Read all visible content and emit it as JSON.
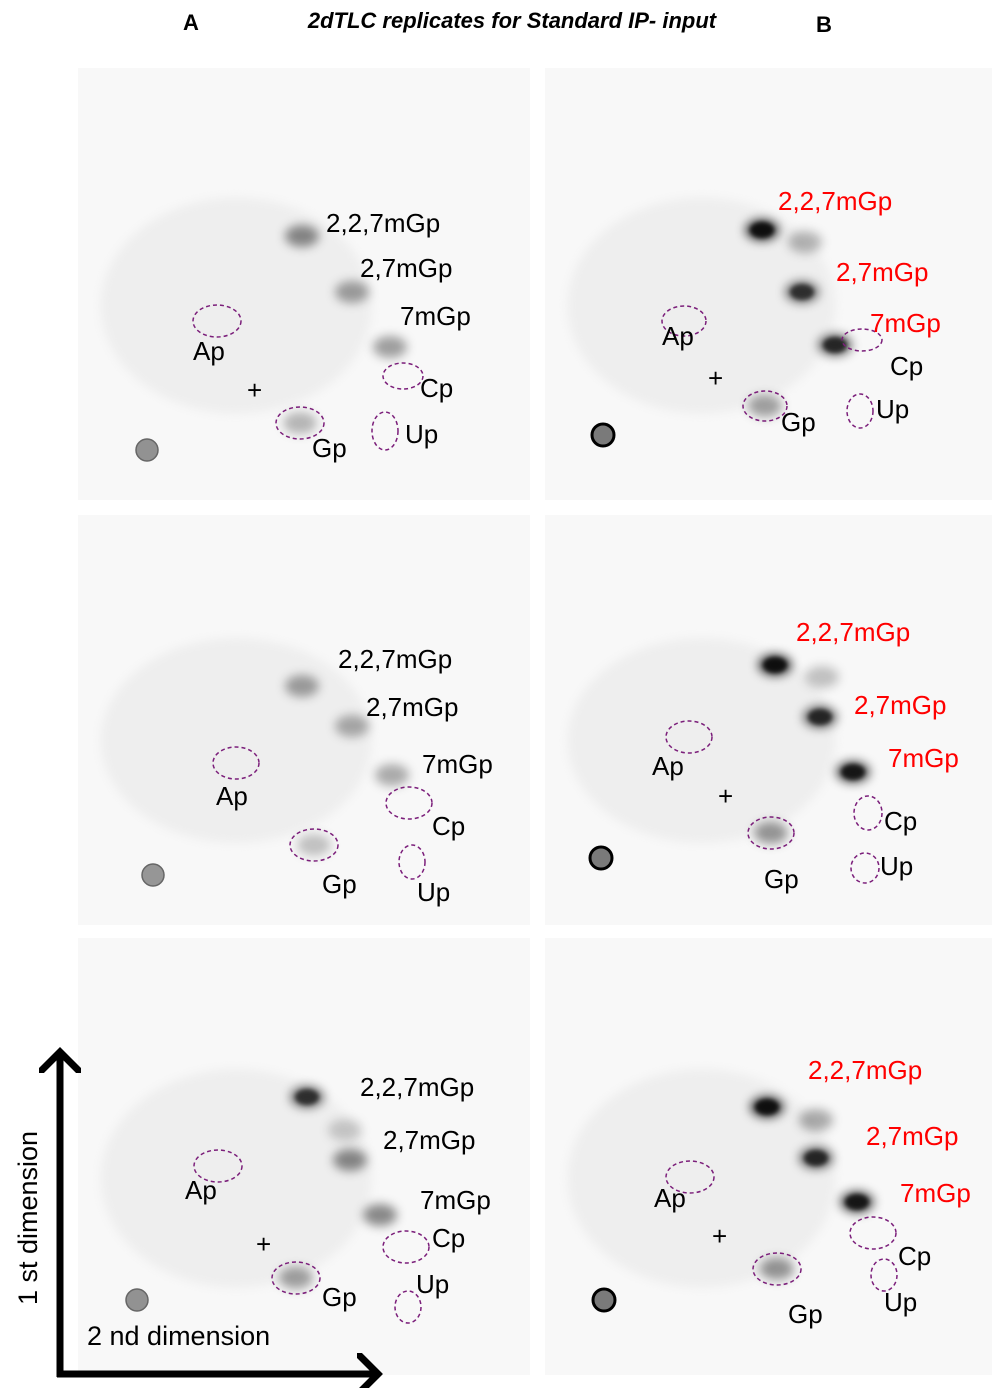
{
  "header": {
    "column_a": "A",
    "title": "2dTLC replicates for  Standard IP- input",
    "column_b": "B"
  },
  "axes": {
    "first": "1 st dimension",
    "second": "2 nd dimension"
  },
  "panels": [
    {
      "methyl_color": "#000000",
      "methyl_labels": [
        "2,2,7mGp",
        "2,7mGp",
        "7mGp"
      ],
      "nucleotide_labels": [
        "Ap",
        "+",
        "Cp",
        "Gp",
        "Up"
      ]
    },
    {
      "methyl_color": "#ff0000",
      "methyl_labels": [
        "2,2,7mGp",
        "2,7mGp",
        "7mGp"
      ],
      "nucleotide_labels": [
        "Ap",
        "+",
        "Cp",
        "Gp",
        "Up"
      ]
    },
    {
      "methyl_color": "#000000",
      "methyl_labels": [
        "2,2,7mGp",
        "2,7mGp",
        "7mGp"
      ],
      "nucleotide_labels": [
        "Ap",
        "Cp",
        "Gp",
        "Up"
      ]
    },
    {
      "methyl_color": "#ff0000",
      "methyl_labels": [
        "2,2,7mGp",
        "2,7mGp",
        "7mGp"
      ],
      "nucleotide_labels": [
        "Ap",
        "+",
        "Cp",
        "Gp",
        "Up"
      ]
    },
    {
      "methyl_color": "#000000",
      "methyl_labels": [
        "2,2,7mGp",
        "2,7mGp",
        "7mGp"
      ],
      "nucleotide_labels": [
        "Ap",
        "+",
        "Cp",
        "Gp",
        "Up"
      ]
    },
    {
      "methyl_color": "#ff0000",
      "methyl_labels": [
        "2,2,7mGp",
        "2,7mGp",
        "7mGp"
      ],
      "nucleotide_labels": [
        "Ap",
        "+",
        "Cp",
        "Gp",
        "Up"
      ]
    }
  ]
}
